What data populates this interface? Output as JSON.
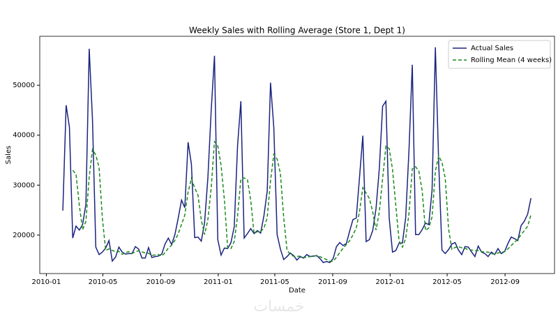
{
  "chart_data": {
    "type": "line",
    "title": "Weekly Sales with Rolling Average (Store 1, Dept 1)",
    "x_label": "Date",
    "y_label": "Sales",
    "legend": "upper right",
    "watermark": "خمسات",
    "x": [
      "2010-02-05",
      "2010-02-12",
      "2010-02-19",
      "2010-02-26",
      "2010-03-05",
      "2010-03-12",
      "2010-03-19",
      "2010-03-26",
      "2010-04-02",
      "2010-04-09",
      "2010-04-16",
      "2010-04-23",
      "2010-04-30",
      "2010-05-07",
      "2010-05-14",
      "2010-05-21",
      "2010-05-28",
      "2010-06-04",
      "2010-06-11",
      "2010-06-18",
      "2010-06-25",
      "2010-07-02",
      "2010-07-09",
      "2010-07-16",
      "2010-07-23",
      "2010-07-30",
      "2010-08-06",
      "2010-08-13",
      "2010-08-20",
      "2010-08-27",
      "2010-09-03",
      "2010-09-10",
      "2010-09-17",
      "2010-09-24",
      "2010-10-01",
      "2010-10-08",
      "2010-10-15",
      "2010-10-22",
      "2010-10-29",
      "2010-11-05",
      "2010-11-12",
      "2010-11-19",
      "2010-11-26",
      "2010-12-03",
      "2010-12-10",
      "2010-12-17",
      "2010-12-24",
      "2010-12-31",
      "2011-01-07",
      "2011-01-14",
      "2011-01-21",
      "2011-01-28",
      "2011-02-04",
      "2011-02-11",
      "2011-02-18",
      "2011-02-25",
      "2011-03-04",
      "2011-03-11",
      "2011-03-18",
      "2011-03-25",
      "2011-04-01",
      "2011-04-08",
      "2011-04-15",
      "2011-04-22",
      "2011-04-29",
      "2011-05-06",
      "2011-05-13",
      "2011-05-20",
      "2011-05-27",
      "2011-06-03",
      "2011-06-10",
      "2011-06-17",
      "2011-06-24",
      "2011-07-01",
      "2011-07-08",
      "2011-07-15",
      "2011-07-22",
      "2011-07-29",
      "2011-08-05",
      "2011-08-12",
      "2011-08-19",
      "2011-08-26",
      "2011-09-02",
      "2011-09-09",
      "2011-09-16",
      "2011-09-23",
      "2011-09-30",
      "2011-10-07",
      "2011-10-14",
      "2011-10-21",
      "2011-10-28",
      "2011-11-04",
      "2011-11-11",
      "2011-11-18",
      "2011-11-25",
      "2011-12-02",
      "2011-12-09",
      "2011-12-16",
      "2011-12-23",
      "2011-12-30",
      "2012-01-06",
      "2012-01-13",
      "2012-01-20",
      "2012-01-27",
      "2012-02-03",
      "2012-02-10",
      "2012-02-17",
      "2012-02-24",
      "2012-03-02",
      "2012-03-09",
      "2012-03-16",
      "2012-03-23",
      "2012-03-30",
      "2012-04-06",
      "2012-04-13",
      "2012-04-20",
      "2012-04-27",
      "2012-05-04",
      "2012-05-11",
      "2012-05-18",
      "2012-05-25",
      "2012-06-01",
      "2012-06-08",
      "2012-06-15",
      "2012-06-22",
      "2012-06-29",
      "2012-07-06",
      "2012-07-13",
      "2012-07-20",
      "2012-07-27",
      "2012-08-03",
      "2012-08-10",
      "2012-08-17",
      "2012-08-24",
      "2012-08-31",
      "2012-09-07",
      "2012-09-14",
      "2012-09-21",
      "2012-09-28",
      "2012-10-05",
      "2012-10-12",
      "2012-10-19",
      "2012-10-26"
    ],
    "series": [
      {
        "name": "Actual Sales",
        "color": "#1a237e",
        "dash": false,
        "values": [
          24900,
          46000,
          41600,
          19400,
          21800,
          21000,
          22100,
          26200,
          57300,
          43000,
          17600,
          16100,
          16600,
          17400,
          18900,
          14800,
          15600,
          17600,
          16600,
          16200,
          16300,
          16300,
          17700,
          17200,
          15400,
          15400,
          17500,
          15500,
          15700,
          15800,
          16200,
          18200,
          19400,
          18100,
          20100,
          23400,
          27000,
          25500,
          38600,
          34200,
          19500,
          19600,
          18800,
          22500,
          31500,
          44900,
          55900,
          19100,
          16000,
          17400,
          17300,
          18500,
          21700,
          37900,
          46800,
          19400,
          20300,
          21300,
          20300,
          20900,
          20400,
          23900,
          28800,
          50500,
          41500,
          20100,
          17200,
          15100,
          15700,
          16400,
          15900,
          15000,
          15700,
          15400,
          16100,
          15700,
          15800,
          15900,
          15300,
          14500,
          14700,
          14500,
          15300,
          17700,
          18500,
          17900,
          18300,
          20800,
          23100,
          23400,
          31600,
          39900,
          18700,
          19100,
          20900,
          25300,
          33300,
          45800,
          46800,
          23400,
          16600,
          16900,
          18400,
          18400,
          23500,
          37000,
          54100,
          20100,
          20100,
          21100,
          22400,
          22100,
          29000,
          57600,
          34700,
          17000,
          16300,
          17100,
          18200,
          18500,
          17000,
          16100,
          17700,
          17600,
          16600,
          15700,
          17800,
          16600,
          16300,
          15700,
          16600,
          16100,
          17300,
          16300,
          16700,
          18300,
          19600,
          19300,
          18900,
          21900,
          22800,
          24200,
          27400
        ]
      },
      {
        "name": "Rolling Mean (4 weeks)",
        "color": "#1a8a1a",
        "dash": true,
        "values": [
          null,
          null,
          null,
          32975,
          32200,
          25950,
          21075,
          22775,
          31650,
          37150,
          36025,
          33500,
          23325,
          16925,
          17250,
          16925,
          16675,
          16725,
          16150,
          16500,
          16675,
          16350,
          16625,
          16875,
          16650,
          16425,
          16375,
          15950,
          16025,
          16125,
          15800,
          16475,
          17400,
          17975,
          18950,
          20250,
          22150,
          24000,
          28625,
          31325,
          29450,
          27975,
          23025,
          20100,
          23100,
          29425,
          38700,
          37850,
          33975,
          27100,
          17450,
          17300,
          18725,
          23850,
          31225,
          31450,
          31100,
          26950,
          20325,
          20700,
          20725,
          21375,
          23500,
          30900,
          36175,
          35225,
          32325,
          23475,
          17025,
          16100,
          15775,
          15750,
          15750,
          15500,
          15550,
          15725,
          15750,
          15875,
          15675,
          15375,
          15100,
          14750,
          14750,
          15550,
          16500,
          17350,
          18100,
          18875,
          20025,
          21400,
          24725,
          29500,
          28400,
          27325,
          24650,
          21000,
          24650,
          31325,
          37800,
          37325,
          33150,
          25925,
          18825,
          17575,
          19300,
          24325,
          33250,
          33675,
          32825,
          28850,
          20925,
          21425,
          23650,
          32775,
          35850,
          34575,
          31400,
          21275,
          17150,
          17525,
          17700,
          17450,
          17325,
          17100,
          17000,
          16900,
          16925,
          16675,
          16600,
          16600,
          16300,
          16175,
          16425,
          16575,
          16675,
          17225,
          17900,
          18575,
          19125,
          20100,
          20900,
          21775,
          24100
        ]
      }
    ],
    "xlim": [
      "2009-12-18",
      "2012-12-15"
    ],
    "xticks": [
      {
        "value": "2010-01-01",
        "label": "2010-01"
      },
      {
        "value": "2010-05-01",
        "label": "2010-05"
      },
      {
        "value": "2010-09-01",
        "label": "2010-09"
      },
      {
        "value": "2011-01-01",
        "label": "2011-01"
      },
      {
        "value": "2011-05-01",
        "label": "2011-05"
      },
      {
        "value": "2011-09-01",
        "label": "2011-09"
      },
      {
        "value": "2012-01-01",
        "label": "2012-01"
      },
      {
        "value": "2012-05-01",
        "label": "2012-05"
      },
      {
        "value": "2012-09-01",
        "label": "2012-09"
      }
    ],
    "ylim": [
      12300,
      59800
    ],
    "yticks": [
      20000,
      30000,
      40000,
      50000
    ],
    "grid": false
  }
}
